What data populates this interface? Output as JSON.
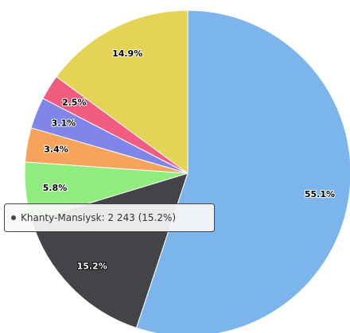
{
  "chart_data": {
    "type": "pie",
    "categories": [
      null,
      "Khanty-Mansiysk",
      null,
      null,
      null,
      null,
      null
    ],
    "values": [
      55.1,
      15.2,
      5.8,
      3.4,
      3.1,
      2.5,
      14.9
    ],
    "value_labels": [
      "55.1%",
      "15.2%",
      "5.8%",
      "3.4%",
      "3.1%",
      "2.5%",
      "14.9%"
    ],
    "colors": [
      "#7cb5ec",
      "#434348",
      "#90ed7d",
      "#f7a35c",
      "#8085e9",
      "#f15c80",
      "#e4d354"
    ],
    "tooltip": {
      "index": 1,
      "value": 2243,
      "value_label": "2 243"
    }
  }
}
